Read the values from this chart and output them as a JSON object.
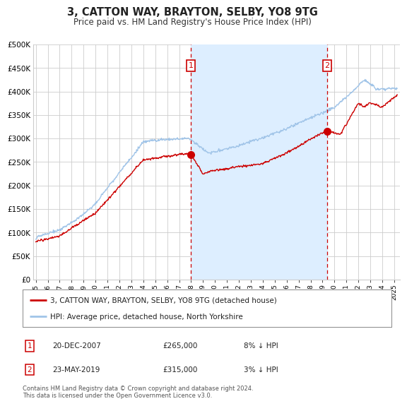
{
  "title": "3, CATTON WAY, BRAYTON, SELBY, YO8 9TG",
  "subtitle": "Price paid vs. HM Land Registry's House Price Index (HPI)",
  "legend_line1": "3, CATTON WAY, BRAYTON, SELBY, YO8 9TG (detached house)",
  "legend_line2": "HPI: Average price, detached house, North Yorkshire",
  "annotation1_date": "20-DEC-2007",
  "annotation1_price": "£265,000",
  "annotation1_hpi": "8% ↓ HPI",
  "annotation2_date": "23-MAY-2019",
  "annotation2_price": "£315,000",
  "annotation2_hpi": "3% ↓ HPI",
  "footer": "Contains HM Land Registry data © Crown copyright and database right 2024.\nThis data is licensed under the Open Government Licence v3.0.",
  "hpi_color": "#a0c4e8",
  "price_color": "#cc0000",
  "annotation_color": "#cc0000",
  "shade_color": "#ddeeff",
  "bg_color": "#ffffff",
  "grid_color": "#cccccc",
  "sale1_x": 2007.97,
  "sale1_y": 265000,
  "sale2_x": 2019.39,
  "sale2_y": 315000,
  "vline1_x": 2007.97,
  "vline2_x": 2019.39,
  "ylim": [
    0,
    500000
  ],
  "xlim_start": 1994.8,
  "xlim_end": 2025.5
}
